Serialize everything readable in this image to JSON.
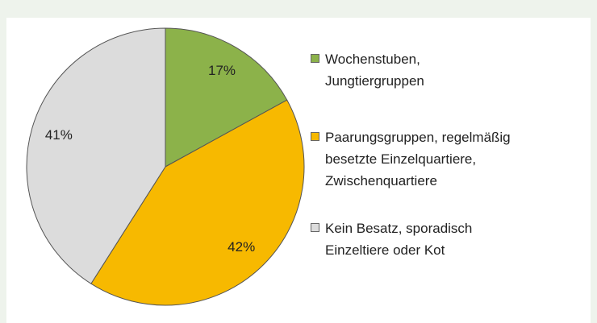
{
  "chart_data": {
    "type": "pie",
    "categories": [
      "Wochenstuben,\nJungtiergruppen",
      "Paarungsgruppen, regelmäßig\nbesetzte Einzelquartiere,\nZwischenquartiere",
      "Kein Besatz, sporadisch\nEinzeltiere oder Kot"
    ],
    "values": [
      17,
      42,
      41
    ],
    "value_labels": [
      "17%",
      "42%",
      "41%"
    ],
    "colors": [
      "#8cb24a",
      "#f7b900",
      "#dcdcdc"
    ],
    "legend": "right"
  }
}
